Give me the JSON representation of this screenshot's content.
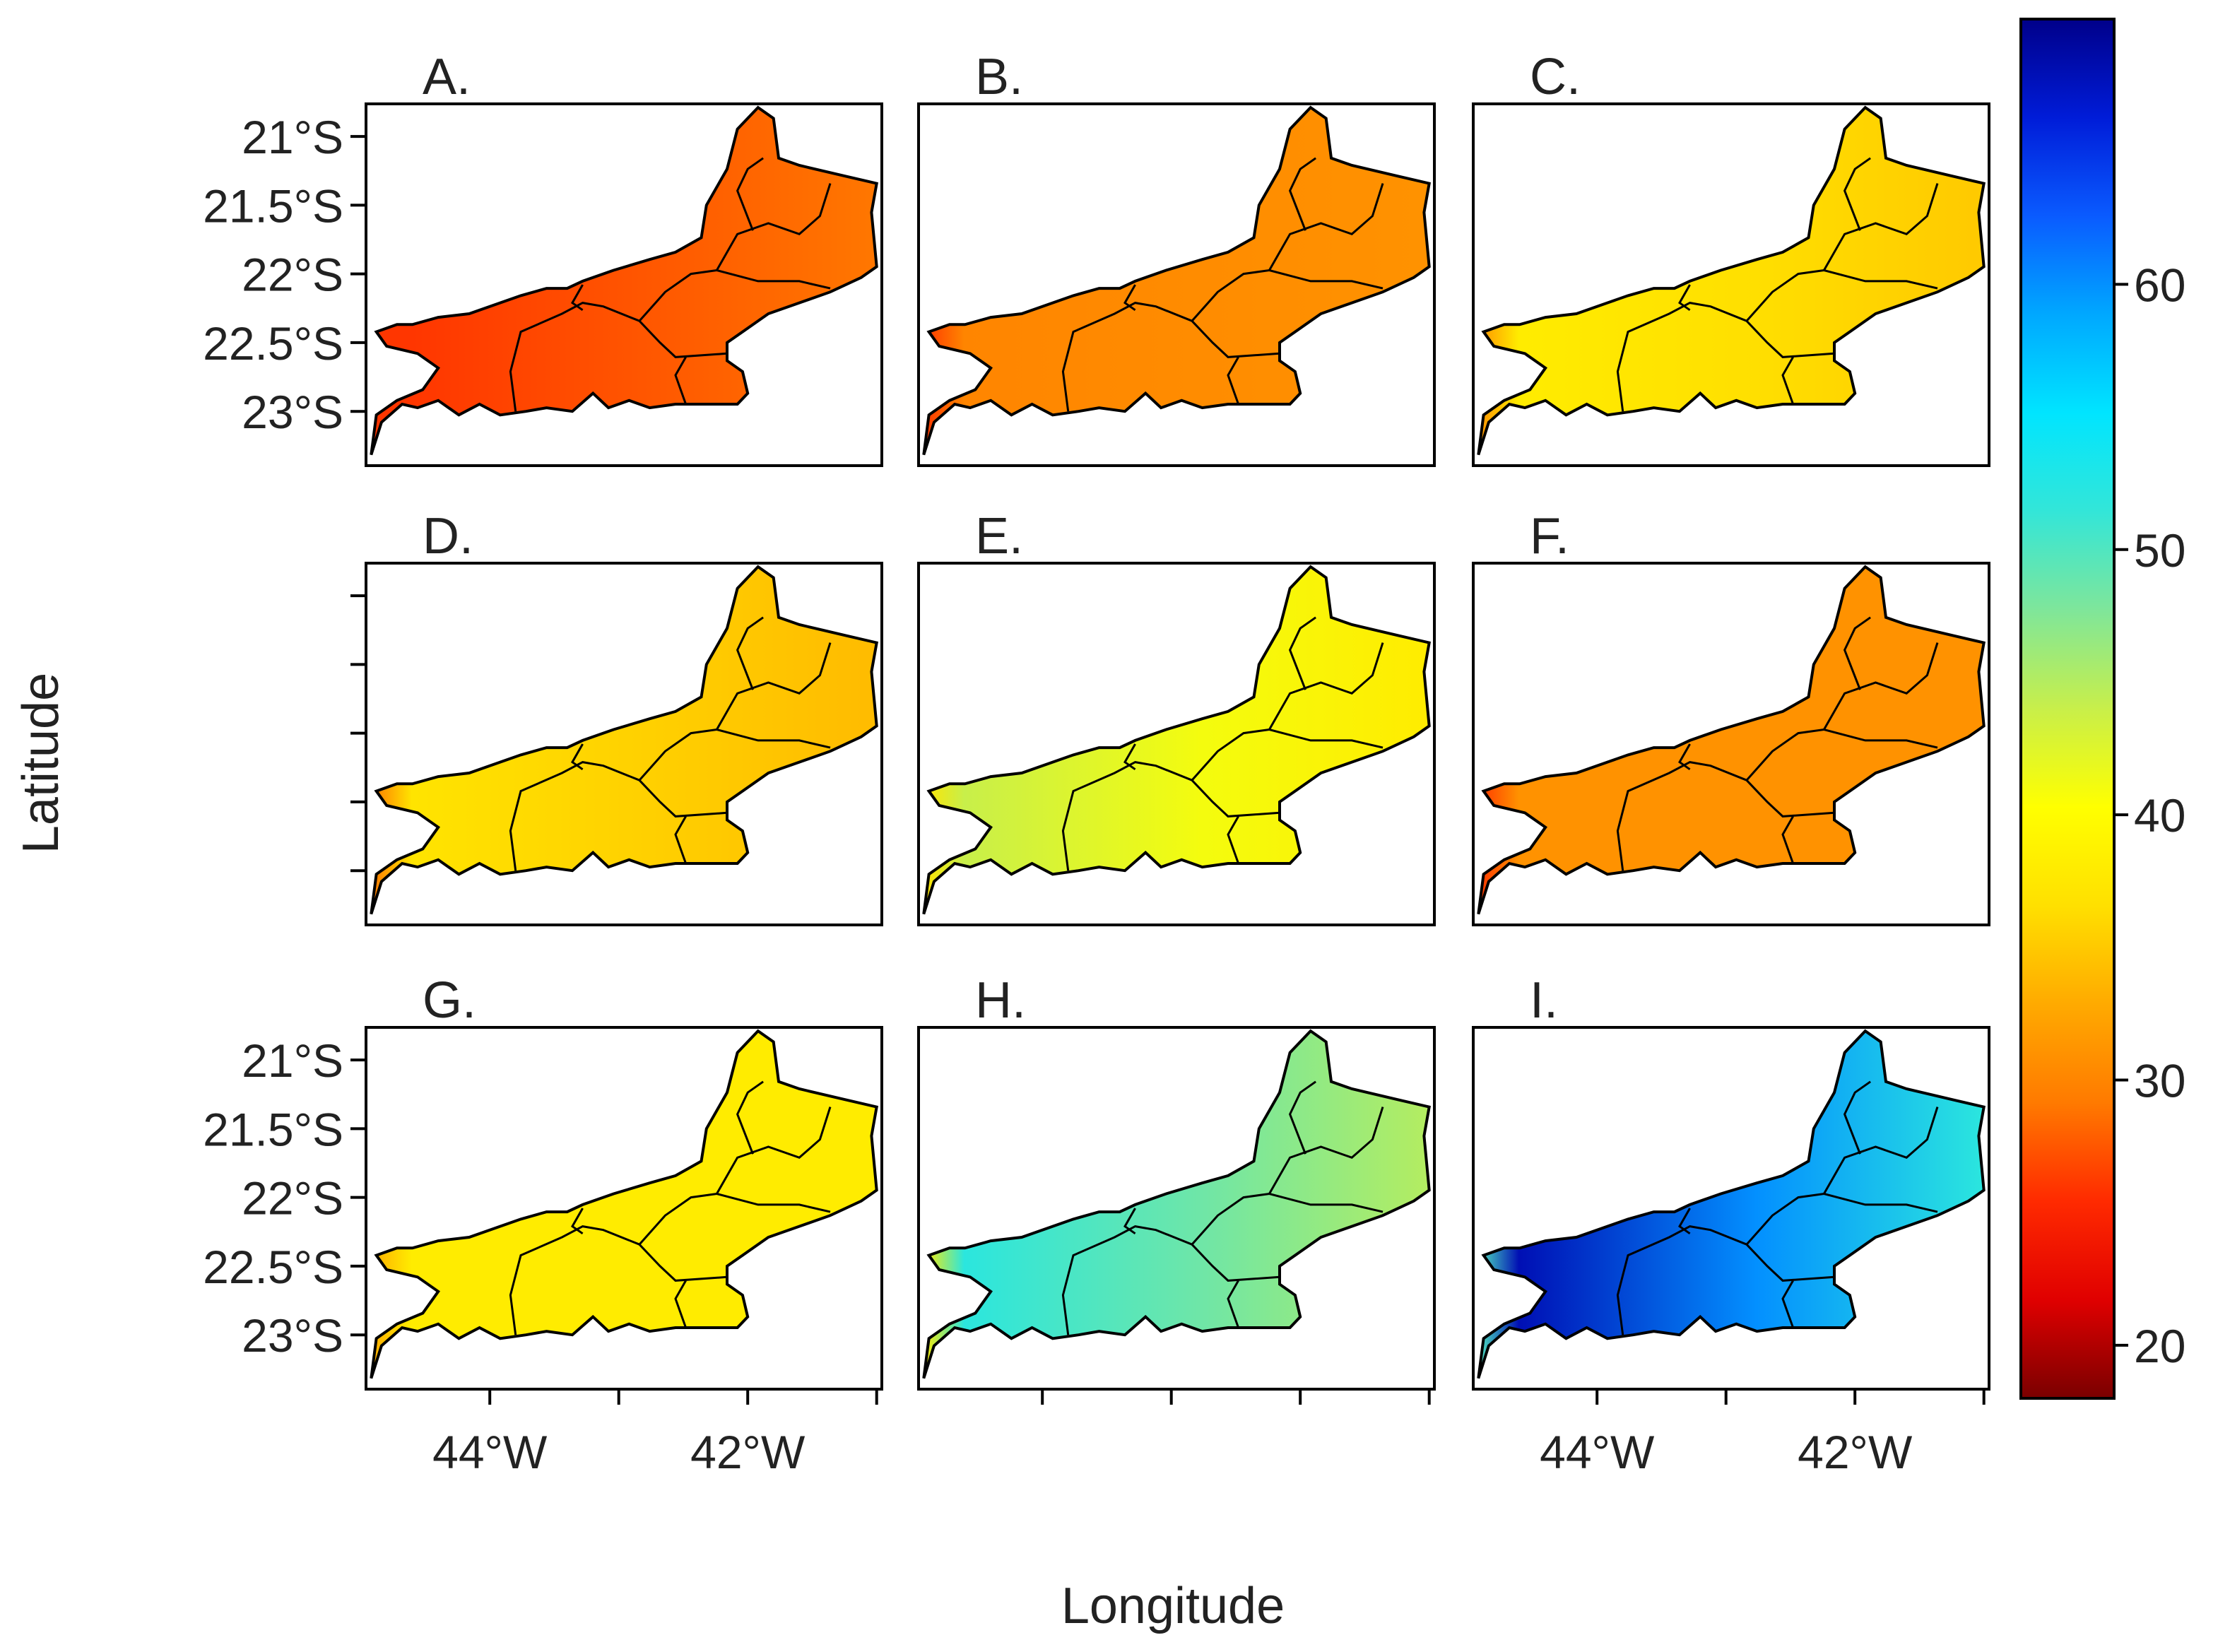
{
  "axis": {
    "y_label": "Latitude",
    "x_label": "Longitude",
    "lat_ticks": [
      "21°S",
      "21.5°S",
      "22°S",
      "22.5°S",
      "23°S"
    ],
    "lon_ticks": [
      "44°W",
      "42°W"
    ]
  },
  "panels": [
    {
      "label": "A.",
      "low": 26,
      "high": 31,
      "west": 26,
      "east": 29
    },
    {
      "label": "B.",
      "low": 26,
      "high": 32,
      "west": 30,
      "east": 31
    },
    {
      "label": "C.",
      "low": 31,
      "high": 38,
      "west": 38,
      "east": 35
    },
    {
      "label": "D.",
      "low": 29,
      "high": 37,
      "west": 37,
      "east": 34
    },
    {
      "label": "E.",
      "low": 37,
      "high": 44,
      "west": 44,
      "east": 38
    },
    {
      "label": "F.",
      "low": 26,
      "high": 31,
      "west": 31,
      "east": 31
    },
    {
      "label": "G.",
      "low": 33,
      "high": 39,
      "west": 38,
      "east": 38
    },
    {
      "label": "H.",
      "low": 38,
      "high": 52,
      "west": 52,
      "east": 45
    },
    {
      "label": "I.",
      "low": 50,
      "high": 68,
      "west": 68,
      "east": 52
    }
  ],
  "legend": {
    "ticks": [
      "20",
      "30",
      "40",
      "50",
      "60"
    ],
    "min": 18,
    "max": 70,
    "colors": [
      "#7a0000",
      "#e00000",
      "#ff2a00",
      "#ff7a00",
      "#ffaa00",
      "#ffe000",
      "#ffff00",
      "#c8ef4a",
      "#7fe69a",
      "#33e6d8",
      "#00e5ff",
      "#00a8ff",
      "#0a5bff",
      "#001cd8",
      "#00008a"
    ]
  }
}
